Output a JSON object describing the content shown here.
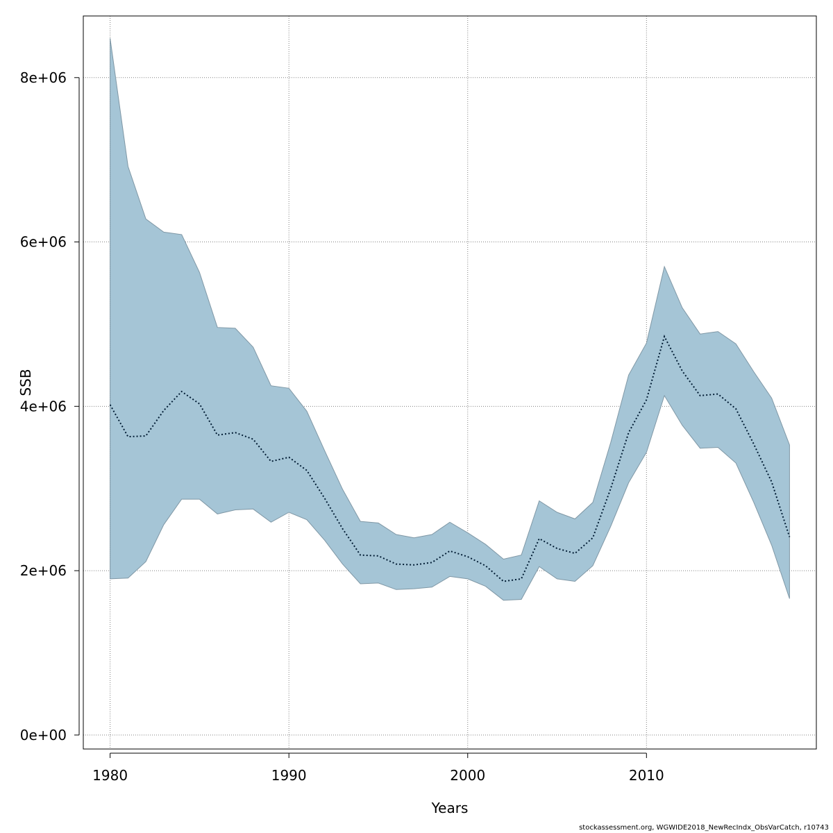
{
  "chart_data": {
    "type": "area",
    "xlabel": "Years",
    "ylabel": "SSB",
    "xlim": [
      1978.5,
      2019.5
    ],
    "ylim": [
      -170000,
      8750000
    ],
    "x_ticks": [
      1980,
      1990,
      2000,
      2010
    ],
    "y_ticks": [
      0,
      2000000,
      4000000,
      6000000,
      8000000
    ],
    "y_tick_labels": [
      "0e+00",
      "2e+06",
      "4e+06",
      "6e+06",
      "8e+06"
    ],
    "grid": true,
    "colors": {
      "band_fill": "#a5c5d6",
      "band_stroke": "#7f97a5",
      "line": "#001b33",
      "grid": "#808080"
    },
    "x": [
      1980,
      1981,
      1982,
      1983,
      1984,
      1985,
      1986,
      1987,
      1988,
      1989,
      1990,
      1991,
      1992,
      1993,
      1994,
      1995,
      1996,
      1997,
      1998,
      1999,
      2000,
      2001,
      2002,
      2003,
      2004,
      2005,
      2006,
      2007,
      2008,
      2009,
      2010,
      2011,
      2012,
      2013,
      2014,
      2015,
      2016,
      2017,
      2018
    ],
    "series": [
      {
        "role": "estimate",
        "values": [
          4020000,
          3630000,
          3640000,
          3950000,
          4180000,
          4030000,
          3650000,
          3680000,
          3600000,
          3330000,
          3380000,
          3220000,
          2880000,
          2510000,
          2190000,
          2180000,
          2080000,
          2070000,
          2100000,
          2240000,
          2170000,
          2060000,
          1870000,
          1900000,
          2390000,
          2270000,
          2210000,
          2400000,
          3000000,
          3680000,
          4080000,
          4850000,
          4430000,
          4130000,
          4150000,
          3970000,
          3540000,
          3080000,
          2410000
        ]
      },
      {
        "role": "upper",
        "values": [
          8480000,
          6920000,
          6280000,
          6120000,
          6090000,
          5630000,
          4960000,
          4950000,
          4720000,
          4250000,
          4220000,
          3940000,
          3460000,
          2990000,
          2600000,
          2580000,
          2440000,
          2400000,
          2440000,
          2590000,
          2460000,
          2320000,
          2140000,
          2190000,
          2850000,
          2710000,
          2630000,
          2830000,
          3560000,
          4380000,
          4770000,
          5700000,
          5200000,
          4880000,
          4910000,
          4760000,
          4420000,
          4100000,
          3530000
        ]
      },
      {
        "role": "lower",
        "values": [
          1900000,
          1910000,
          2110000,
          2560000,
          2870000,
          2870000,
          2690000,
          2740000,
          2750000,
          2590000,
          2710000,
          2620000,
          2370000,
          2080000,
          1840000,
          1850000,
          1770000,
          1780000,
          1800000,
          1930000,
          1900000,
          1810000,
          1640000,
          1650000,
          2050000,
          1900000,
          1870000,
          2060000,
          2540000,
          3070000,
          3440000,
          4130000,
          3770000,
          3490000,
          3500000,
          3310000,
          2830000,
          2310000,
          1660000
        ]
      }
    ]
  },
  "footer": {
    "text": "stockassessment.org, WGWIDE2018_NewRecIndx_ObsVarCatch, r10743"
  }
}
